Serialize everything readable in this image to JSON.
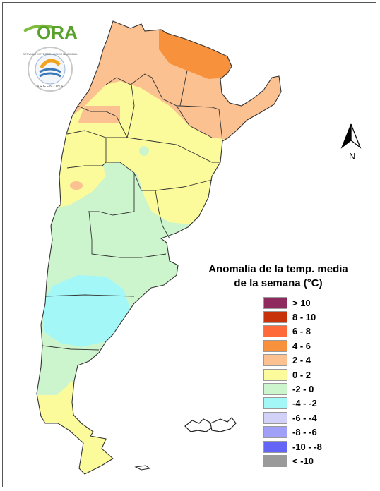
{
  "logos": {
    "ora_text": "ORA",
    "smn_ring_text": "SERVICIO METEOROLÓGICO NACIONAL",
    "smn_country": "ARGENTINA"
  },
  "compass": {
    "letter": "N",
    "icon": "north-arrow-icon"
  },
  "legend": {
    "title_line1": "Anomalía de la temp. media",
    "title_line2": "de la semana (°C)",
    "items": [
      {
        "label": "> 10",
        "color": "#8e2a5e"
      },
      {
        "label": "8 - 10",
        "color": "#c8320a"
      },
      {
        "label": "6 - 8",
        "color": "#ff6a3a"
      },
      {
        "label": "4 - 6",
        "color": "#f7913c"
      },
      {
        "label": "2 - 4",
        "color": "#fbc190"
      },
      {
        "label": "0 - 2",
        "color": "#fbfb9c"
      },
      {
        "label": "-2 - 0",
        "color": "#cdf5cd"
      },
      {
        "label": "-4 - -2",
        "color": "#a4f7f7"
      },
      {
        "label": "-6 - -4",
        "color": "#d2d2f8"
      },
      {
        "label": "-8 - -6",
        "color": "#a0a0f8"
      },
      {
        "label": "-10 - -8",
        "color": "#6464f6"
      },
      {
        "label": "< -10",
        "color": "#9a9a9a"
      }
    ]
  },
  "colors": {
    "anom_4_6": "#f7913c",
    "anom_2_4": "#fbc190",
    "anom_0_2": "#fbfb9c",
    "anom_m2_0": "#cdf5cd",
    "anom_m4_m2": "#a4f7f7",
    "province_border": "#333333"
  }
}
